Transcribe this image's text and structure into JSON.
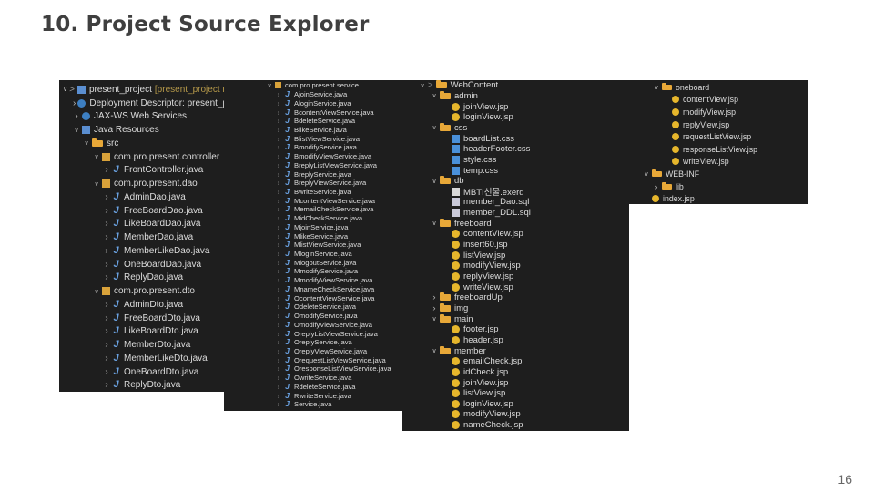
{
  "slide": {
    "title": "10. Project Source Explorer",
    "page_number": "16"
  },
  "panel1": {
    "rows": [
      {
        "label": "present_project",
        "suffix": "[present_project main]",
        "icon": "project-icon",
        "prefix": ">",
        "indent": 0,
        "chev": "down"
      },
      {
        "label": "Deployment Descriptor: present_project",
        "icon": "descriptor-icon",
        "indent": 1,
        "chev": "right"
      },
      {
        "label": "JAX-WS Web Services",
        "icon": "webservice-icon",
        "indent": 1,
        "chev": "right"
      },
      {
        "label": "Java Resources",
        "icon": "java-resources-icon",
        "indent": 1,
        "chev": "down"
      },
      {
        "label": "src",
        "icon": "source-folder-icon",
        "indent": 2,
        "chev": "down"
      },
      {
        "label": "com.pro.present.controller",
        "icon": "package-icon",
        "indent": 3,
        "chev": "down"
      },
      {
        "label": "FrontController.java",
        "icon": "java-file-icon",
        "indent": 4,
        "chev": "right"
      },
      {
        "label": "com.pro.present.dao",
        "icon": "package-icon",
        "indent": 3,
        "chev": "down"
      },
      {
        "label": "AdminDao.java",
        "icon": "java-file-icon",
        "indent": 4,
        "chev": "right"
      },
      {
        "label": "FreeBoardDao.java",
        "icon": "java-file-icon",
        "indent": 4,
        "chev": "right"
      },
      {
        "label": "LikeBoardDao.java",
        "icon": "java-file-icon",
        "indent": 4,
        "chev": "right"
      },
      {
        "label": "MemberDao.java",
        "icon": "java-file-icon",
        "indent": 4,
        "chev": "right"
      },
      {
        "label": "MemberLikeDao.java",
        "icon": "java-file-icon",
        "indent": 4,
        "chev": "right"
      },
      {
        "label": "OneBoardDao.java",
        "icon": "java-file-icon",
        "indent": 4,
        "chev": "right"
      },
      {
        "label": "ReplyDao.java",
        "icon": "java-file-icon",
        "indent": 4,
        "chev": "right"
      },
      {
        "label": "com.pro.present.dto",
        "icon": "package-icon",
        "indent": 3,
        "chev": "down"
      },
      {
        "label": "AdminDto.java",
        "icon": "java-file-icon",
        "indent": 4,
        "chev": "right"
      },
      {
        "label": "FreeBoardDto.java",
        "icon": "java-file-icon",
        "indent": 4,
        "chev": "right"
      },
      {
        "label": "LikeBoardDto.java",
        "icon": "java-file-icon",
        "indent": 4,
        "chev": "right"
      },
      {
        "label": "MemberDto.java",
        "icon": "java-file-icon",
        "indent": 4,
        "chev": "right"
      },
      {
        "label": "MemberLikeDto.java",
        "icon": "java-file-icon",
        "indent": 4,
        "chev": "right"
      },
      {
        "label": "OneBoardDto.java",
        "icon": "java-file-icon",
        "indent": 4,
        "chev": "right"
      },
      {
        "label": "ReplyDto.java",
        "icon": "java-file-icon",
        "indent": 4,
        "chev": "right"
      }
    ]
  },
  "panel2": {
    "rows": [
      {
        "label": "com.pro.present.service",
        "icon": "package-icon",
        "indent": 0,
        "chev": "down"
      },
      {
        "label": "AjoinService.java",
        "icon": "java-file-icon",
        "indent": 1,
        "chev": "right"
      },
      {
        "label": "AloginService.java",
        "icon": "java-file-icon",
        "indent": 1,
        "chev": "right"
      },
      {
        "label": "BcontentViewService.java",
        "icon": "java-file-icon",
        "indent": 1,
        "chev": "right"
      },
      {
        "label": "BdeleteService.java",
        "icon": "java-file-icon",
        "indent": 1,
        "chev": "right"
      },
      {
        "label": "BlikeService.java",
        "icon": "java-file-icon",
        "indent": 1,
        "chev": "right"
      },
      {
        "label": "BlistViewService.java",
        "icon": "java-file-icon",
        "indent": 1,
        "chev": "right"
      },
      {
        "label": "BmodifyService.java",
        "icon": "java-file-icon",
        "indent": 1,
        "chev": "right"
      },
      {
        "label": "BmodifyViewService.java",
        "icon": "java-file-icon",
        "indent": 1,
        "chev": "right"
      },
      {
        "label": "BreplyListViewService.java",
        "icon": "java-file-icon",
        "indent": 1,
        "chev": "right"
      },
      {
        "label": "BreplyService.java",
        "icon": "java-file-icon",
        "indent": 1,
        "chev": "right"
      },
      {
        "label": "BreplyViewService.java",
        "icon": "java-file-icon",
        "indent": 1,
        "chev": "right"
      },
      {
        "label": "BwriteService.java",
        "icon": "java-file-icon",
        "indent": 1,
        "chev": "right"
      },
      {
        "label": "McontentViewService.java",
        "icon": "java-file-icon",
        "indent": 1,
        "chev": "right"
      },
      {
        "label": "MemailCheckService.java",
        "icon": "java-file-icon",
        "indent": 1,
        "chev": "right"
      },
      {
        "label": "MidCheckService.java",
        "icon": "java-file-icon",
        "indent": 1,
        "chev": "right"
      },
      {
        "label": "MjoinService.java",
        "icon": "java-file-icon",
        "indent": 1,
        "chev": "right"
      },
      {
        "label": "MlikeService.java",
        "icon": "java-file-icon",
        "indent": 1,
        "chev": "right"
      },
      {
        "label": "MlistViewService.java",
        "icon": "java-file-icon",
        "indent": 1,
        "chev": "right"
      },
      {
        "label": "MloginService.java",
        "icon": "java-file-icon",
        "indent": 1,
        "chev": "right"
      },
      {
        "label": "MlogoutService.java",
        "icon": "java-file-icon",
        "indent": 1,
        "chev": "right"
      },
      {
        "label": "MmodifyService.java",
        "icon": "java-file-icon",
        "indent": 1,
        "chev": "right"
      },
      {
        "label": "MmodifyViewService.java",
        "icon": "java-file-icon",
        "indent": 1,
        "chev": "right"
      },
      {
        "label": "MnameCheckService.java",
        "icon": "java-file-icon",
        "indent": 1,
        "chev": "right"
      },
      {
        "label": "OcontentViewService.java",
        "icon": "java-file-icon",
        "indent": 1,
        "chev": "right"
      },
      {
        "label": "OdeleteService.java",
        "icon": "java-file-icon",
        "indent": 1,
        "chev": "right"
      },
      {
        "label": "OmodifyService.java",
        "icon": "java-file-icon",
        "indent": 1,
        "chev": "right"
      },
      {
        "label": "OmodifyViewService.java",
        "icon": "java-file-icon",
        "indent": 1,
        "chev": "right"
      },
      {
        "label": "OreplyListViewService.java",
        "icon": "java-file-icon",
        "indent": 1,
        "chev": "right"
      },
      {
        "label": "OreplyService.java",
        "icon": "java-file-icon",
        "indent": 1,
        "chev": "right"
      },
      {
        "label": "OreplyViewService.java",
        "icon": "java-file-icon",
        "indent": 1,
        "chev": "right"
      },
      {
        "label": "OrequestListViewService.java",
        "icon": "java-file-icon",
        "indent": 1,
        "chev": "right"
      },
      {
        "label": "OresponseListViewService.java",
        "icon": "java-file-icon",
        "indent": 1,
        "chev": "right"
      },
      {
        "label": "OwriteService.java",
        "icon": "java-file-icon",
        "indent": 1,
        "chev": "right"
      },
      {
        "label": "RdeleteService.java",
        "icon": "java-file-icon",
        "indent": 1,
        "chev": "right"
      },
      {
        "label": "RwriteService.java",
        "icon": "java-file-icon",
        "indent": 1,
        "chev": "right"
      },
      {
        "label": "Service.java",
        "icon": "java-file-icon",
        "indent": 1,
        "chev": "right"
      }
    ]
  },
  "panel3": {
    "rows": [
      {
        "label": "WebContent",
        "icon": "folder-icon",
        "prefix": ">",
        "indent": 0,
        "chev": "down"
      },
      {
        "label": "admin",
        "icon": "folder-icon",
        "indent": 1,
        "chev": "down"
      },
      {
        "label": "joinView.jsp",
        "icon": "jsp-file-icon",
        "indent": 2,
        "chev": "none"
      },
      {
        "label": "loginView.jsp",
        "icon": "jsp-file-icon",
        "indent": 2,
        "chev": "none"
      },
      {
        "label": "css",
        "icon": "folder-icon",
        "indent": 1,
        "chev": "down"
      },
      {
        "label": "boardList.css",
        "icon": "css-file-icon",
        "indent": 2,
        "chev": "none"
      },
      {
        "label": "headerFooter.css",
        "icon": "css-file-icon",
        "indent": 2,
        "chev": "none"
      },
      {
        "label": "style.css",
        "icon": "css-file-icon",
        "indent": 2,
        "chev": "none"
      },
      {
        "label": "temp.css",
        "icon": "css-file-icon",
        "indent": 2,
        "chev": "none"
      },
      {
        "label": "db",
        "icon": "folder-icon",
        "indent": 1,
        "chev": "down"
      },
      {
        "label": "MBTI선물.exerd",
        "icon": "erd-file-icon",
        "indent": 2,
        "chev": "none"
      },
      {
        "label": "member_Dao.sql",
        "icon": "sql-file-icon",
        "indent": 2,
        "chev": "none"
      },
      {
        "label": "member_DDL.sql",
        "icon": "sql-file-icon",
        "indent": 2,
        "chev": "none"
      },
      {
        "label": "freeboard",
        "icon": "folder-icon",
        "indent": 1,
        "chev": "down"
      },
      {
        "label": "contentView.jsp",
        "icon": "jsp-file-icon",
        "indent": 2,
        "chev": "none"
      },
      {
        "label": "insert60.jsp",
        "icon": "jsp-file-icon",
        "indent": 2,
        "chev": "none"
      },
      {
        "label": "listView.jsp",
        "icon": "jsp-file-icon",
        "indent": 2,
        "chev": "none"
      },
      {
        "label": "modifyView.jsp",
        "icon": "jsp-file-icon",
        "indent": 2,
        "chev": "none"
      },
      {
        "label": "replyView.jsp",
        "icon": "jsp-file-icon",
        "indent": 2,
        "chev": "none"
      },
      {
        "label": "writeView.jsp",
        "icon": "jsp-file-icon",
        "indent": 2,
        "chev": "none"
      },
      {
        "label": "freeboardUp",
        "icon": "folder-icon",
        "indent": 1,
        "chev": "right"
      },
      {
        "label": "img",
        "icon": "folder-icon",
        "indent": 1,
        "chev": "right"
      },
      {
        "label": "main",
        "icon": "folder-icon",
        "indent": 1,
        "chev": "down"
      },
      {
        "label": "footer.jsp",
        "icon": "jsp-file-icon",
        "indent": 2,
        "chev": "none"
      },
      {
        "label": "header.jsp",
        "icon": "jsp-file-icon",
        "indent": 2,
        "chev": "none"
      },
      {
        "label": "member",
        "icon": "folder-icon",
        "indent": 1,
        "chev": "down"
      },
      {
        "label": "emailCheck.jsp",
        "icon": "jsp-file-icon",
        "indent": 2,
        "chev": "none"
      },
      {
        "label": "idCheck.jsp",
        "icon": "jsp-file-icon",
        "indent": 2,
        "chev": "none"
      },
      {
        "label": "joinView.jsp",
        "icon": "jsp-file-icon",
        "indent": 2,
        "chev": "none"
      },
      {
        "label": "listView.jsp",
        "icon": "jsp-file-icon",
        "indent": 2,
        "chev": "none"
      },
      {
        "label": "loginView.jsp",
        "icon": "jsp-file-icon",
        "indent": 2,
        "chev": "none"
      },
      {
        "label": "modifyView.jsp",
        "icon": "jsp-file-icon",
        "indent": 2,
        "chev": "none"
      },
      {
        "label": "nameCheck.jsp",
        "icon": "jsp-file-icon",
        "indent": 2,
        "chev": "none"
      }
    ]
  },
  "panel4": {
    "rows": [
      {
        "label": "oneboard",
        "icon": "folder-icon",
        "indent": 0,
        "chev": "down"
      },
      {
        "label": "contentView.jsp",
        "icon": "jsp-file-icon",
        "indent": 1,
        "chev": "none"
      },
      {
        "label": "modifyView.jsp",
        "icon": "jsp-file-icon",
        "indent": 1,
        "chev": "none"
      },
      {
        "label": "replyView.jsp",
        "icon": "jsp-file-icon",
        "indent": 1,
        "chev": "none"
      },
      {
        "label": "requestListView.jsp",
        "icon": "jsp-file-icon",
        "indent": 1,
        "chev": "none"
      },
      {
        "label": "responseListView.jsp",
        "icon": "jsp-file-icon",
        "indent": 1,
        "chev": "none"
      },
      {
        "label": "writeView.jsp",
        "icon": "jsp-file-icon",
        "indent": 1,
        "chev": "none"
      },
      {
        "label": "WEB-INF",
        "icon": "folder-icon",
        "indent": -1,
        "chev": "down"
      },
      {
        "label": "lib",
        "icon": "folder-icon",
        "indent": 0,
        "chev": "right"
      },
      {
        "label": "index.jsp",
        "icon": "jsp-file-icon",
        "indent": -1,
        "chev": "none"
      }
    ]
  }
}
